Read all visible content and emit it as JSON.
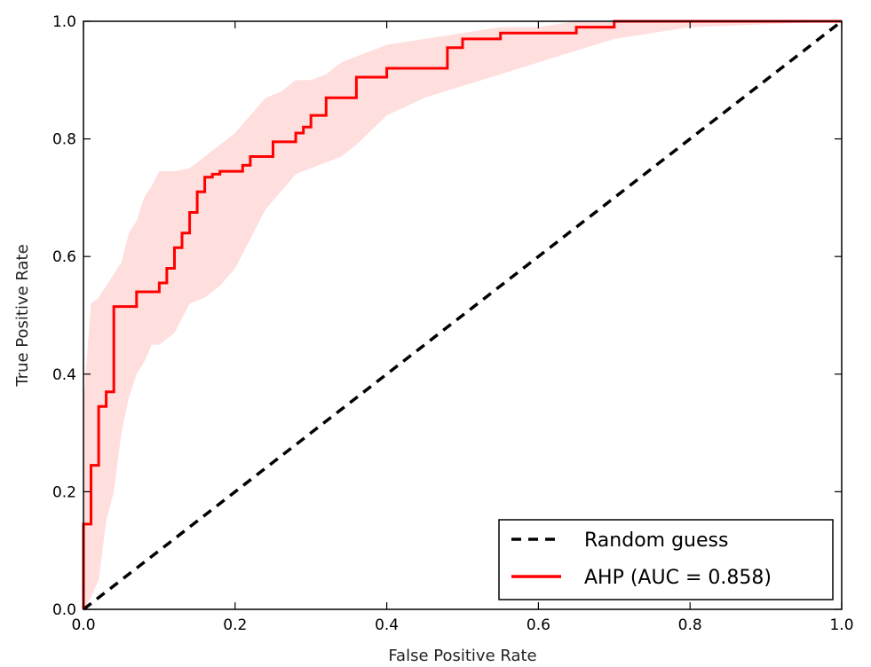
{
  "chart_data": {
    "type": "line",
    "title": "",
    "xlabel": "False Positive Rate",
    "ylabel": "True Positive Rate",
    "xlim": [
      0.0,
      1.0
    ],
    "ylim": [
      0.0,
      1.0
    ],
    "xticks": [
      "0.0",
      "0.2",
      "0.4",
      "0.6",
      "0.8",
      "1.0"
    ],
    "yticks": [
      "0.0",
      "0.2",
      "0.4",
      "0.6",
      "0.8",
      "1.0"
    ],
    "grid": false,
    "legend_position": "lower-right",
    "series": [
      {
        "name": "Random guess",
        "style": "dashed",
        "color": "#000000",
        "x": [
          0.0,
          1.0
        ],
        "y": [
          0.0,
          1.0
        ]
      },
      {
        "name": "AHP (AUC = 0.858)",
        "style": "step",
        "color": "#ff0000",
        "x": [
          0.0,
          0.0,
          0.01,
          0.01,
          0.02,
          0.02,
          0.03,
          0.03,
          0.04,
          0.04,
          0.05,
          0.05,
          0.07,
          0.07,
          0.08,
          0.08,
          0.09,
          0.09,
          0.1,
          0.1,
          0.11,
          0.11,
          0.12,
          0.12,
          0.13,
          0.13,
          0.14,
          0.14,
          0.15,
          0.15,
          0.16,
          0.16,
          0.17,
          0.17,
          0.18,
          0.18,
          0.19,
          0.19,
          0.21,
          0.21,
          0.22,
          0.22,
          0.23,
          0.23,
          0.25,
          0.25,
          0.28,
          0.28,
          0.29,
          0.29,
          0.3,
          0.3,
          0.32,
          0.32,
          0.36,
          0.36,
          0.4,
          0.4,
          0.48,
          0.48,
          0.5,
          0.5,
          0.55,
          0.55,
          0.65,
          0.65,
          0.67,
          0.67,
          0.7,
          0.7,
          1.0
        ],
        "y": [
          0.0,
          0.145,
          0.145,
          0.245,
          0.245,
          0.345,
          0.345,
          0.37,
          0.37,
          0.515,
          0.515,
          0.515,
          0.515,
          0.54,
          0.54,
          0.54,
          0.54,
          0.54,
          0.54,
          0.555,
          0.555,
          0.58,
          0.58,
          0.615,
          0.615,
          0.64,
          0.64,
          0.675,
          0.675,
          0.71,
          0.71,
          0.735,
          0.735,
          0.74,
          0.74,
          0.745,
          0.745,
          0.745,
          0.745,
          0.755,
          0.755,
          0.77,
          0.77,
          0.77,
          0.77,
          0.795,
          0.795,
          0.81,
          0.81,
          0.82,
          0.82,
          0.84,
          0.84,
          0.87,
          0.87,
          0.905,
          0.905,
          0.92,
          0.92,
          0.955,
          0.955,
          0.97,
          0.97,
          0.98,
          0.98,
          0.99,
          0.99,
          0.99,
          0.99,
          1.0,
          1.0
        ]
      }
    ],
    "band": {
      "color": "#ffc8c8",
      "x": [
        0.0,
        0.01,
        0.02,
        0.03,
        0.04,
        0.05,
        0.06,
        0.07,
        0.08,
        0.09,
        0.1,
        0.12,
        0.14,
        0.16,
        0.18,
        0.2,
        0.22,
        0.24,
        0.26,
        0.28,
        0.3,
        0.32,
        0.34,
        0.36,
        0.4,
        0.45,
        0.5,
        0.55,
        0.6,
        0.65,
        0.7,
        0.75,
        0.8,
        1.0
      ],
      "upper": [
        0.35,
        0.52,
        0.53,
        0.55,
        0.57,
        0.59,
        0.64,
        0.66,
        0.7,
        0.72,
        0.745,
        0.745,
        0.75,
        0.77,
        0.79,
        0.81,
        0.84,
        0.87,
        0.88,
        0.9,
        0.9,
        0.91,
        0.93,
        0.94,
        0.96,
        0.97,
        0.98,
        0.99,
        0.99,
        1.0,
        1.0,
        1.0,
        1.0,
        1.0
      ],
      "lower": [
        0.0,
        0.02,
        0.05,
        0.15,
        0.2,
        0.3,
        0.36,
        0.4,
        0.42,
        0.45,
        0.45,
        0.47,
        0.52,
        0.53,
        0.55,
        0.58,
        0.63,
        0.68,
        0.71,
        0.74,
        0.75,
        0.76,
        0.77,
        0.79,
        0.84,
        0.87,
        0.89,
        0.91,
        0.93,
        0.95,
        0.97,
        0.98,
        0.99,
        1.0
      ]
    }
  }
}
